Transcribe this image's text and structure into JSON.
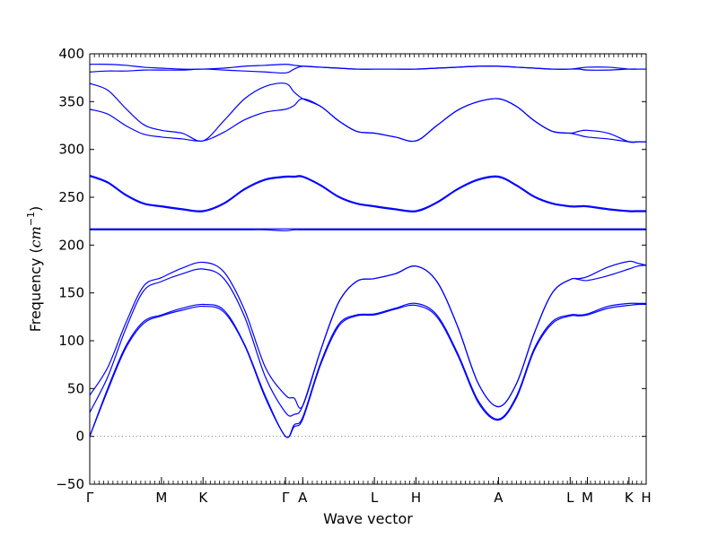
{
  "chart_data": {
    "type": "line",
    "title": "",
    "xlabel": "Wave vector",
    "ylabel": "Frequency ($cm^{-1}$)",
    "ylabel_plain": "Frequency (",
    "ylabel_unit": "cm",
    "ylabel_exp": "−1",
    "ylabel_close": ")",
    "ylim": [
      -50,
      400
    ],
    "yticks": [
      -50,
      0,
      50,
      100,
      150,
      200,
      250,
      300,
      350,
      400
    ],
    "grid": false,
    "legend": "none",
    "line_color": "#0000ff",
    "zero_line": {
      "y": 0,
      "style": "dotted",
      "color": "#808080"
    },
    "xticks": [
      {
        "label": "Γ",
        "x": 0
      },
      {
        "label": "M",
        "x": 1.0
      },
      {
        "label": "K",
        "x": 1.58
      },
      {
        "label": "Γ",
        "x": 2.73
      },
      {
        "label": "A",
        "x": 2.97
      },
      {
        "label": "L",
        "x": 3.97
      },
      {
        "label": "H",
        "x": 4.55
      },
      {
        "label": "A",
        "x": 5.7
      },
      {
        "label": "L",
        "x": 6.7
      },
      {
        "label": "M",
        "x": 6.94
      },
      {
        "label": "K",
        "x": 7.52
      },
      {
        "label": "H",
        "x": 7.76
      }
    ],
    "x": [
      0,
      0.25,
      0.5,
      0.75,
      1.0,
      1.29,
      1.58,
      1.87,
      2.16,
      2.45,
      2.73,
      2.85,
      2.97,
      3.22,
      3.47,
      3.72,
      3.97,
      4.26,
      4.55,
      4.84,
      5.13,
      5.42,
      5.7,
      5.95,
      6.2,
      6.45,
      6.7,
      6.82,
      6.94,
      7.23,
      7.52,
      7.64,
      7.76
    ],
    "series": [
      {
        "values": [
          0,
          48,
          92,
          118,
          126,
          132,
          136,
          130,
          95,
          40,
          0,
          10,
          18,
          75,
          115,
          126,
          127,
          133,
          137,
          125,
          85,
          35,
          17,
          40,
          90,
          118,
          126,
          126,
          127,
          134,
          137,
          138,
          138
        ]
      },
      {
        "values": [
          0,
          50,
          94,
          120,
          127,
          134,
          138,
          132,
          96,
          42,
          0,
          12,
          20,
          77,
          117,
          127,
          128,
          134,
          139,
          127,
          87,
          37,
          18,
          42,
          92,
          120,
          127,
          127,
          128,
          136,
          139,
          139,
          139
        ]
      },
      {
        "values": [
          25,
          62,
          112,
          152,
          162,
          170,
          175,
          165,
          125,
          62,
          25,
          23,
          32,
          90,
          140,
          162,
          165,
          170,
          178,
          162,
          115,
          55,
          31,
          55,
          108,
          150,
          164,
          164,
          163,
          168,
          175,
          178,
          179
        ]
      },
      {
        "values": [
          43,
          72,
          118,
          157,
          166,
          176,
          182,
          172,
          132,
          72,
          43,
          40,
          32,
          90,
          140,
          162,
          165,
          170,
          178,
          162,
          115,
          55,
          31,
          55,
          108,
          150,
          164,
          165,
          167,
          177,
          183,
          181,
          179
        ]
      },
      {
        "values": [
          216,
          216,
          216,
          216,
          216,
          216,
          216,
          216,
          216,
          216,
          215,
          216,
          216,
          216,
          216,
          216,
          216,
          216,
          216,
          216,
          216,
          216,
          216,
          216,
          216,
          216,
          216,
          216,
          216,
          216,
          216,
          216,
          216
        ]
      },
      {
        "values": [
          217,
          217,
          217,
          217,
          217,
          217,
          217,
          217,
          217,
          217,
          217,
          217,
          217,
          217,
          217,
          217,
          217,
          217,
          217,
          217,
          217,
          217,
          217,
          217,
          217,
          217,
          217,
          217,
          217,
          217,
          217,
          217,
          217
        ]
      },
      {
        "values": [
          272,
          265,
          252,
          243,
          240,
          237,
          235,
          243,
          258,
          268,
          271,
          271,
          271,
          262,
          250,
          243,
          240,
          237,
          235,
          244,
          258,
          268,
          271,
          262,
          250,
          243,
          240,
          240,
          240,
          237,
          235,
          235,
          235
        ]
      },
      {
        "values": [
          273,
          266,
          253,
          244,
          241,
          238,
          236,
          244,
          259,
          269,
          272,
          272,
          272,
          263,
          251,
          244,
          241,
          238,
          236,
          245,
          259,
          269,
          272,
          263,
          251,
          244,
          241,
          241,
          241,
          238,
          236,
          236,
          236
        ]
      },
      {
        "values": [
          342,
          337,
          325,
          316,
          313,
          311,
          309,
          318,
          331,
          339,
          342,
          346,
          353,
          345,
          330,
          319,
          317,
          313,
          309,
          325,
          341,
          350,
          353,
          345,
          330,
          319,
          317,
          315,
          313,
          311,
          308,
          308,
          308
        ]
      },
      {
        "values": [
          369,
          362,
          343,
          326,
          320,
          317,
          309,
          330,
          353,
          366,
          369,
          360,
          353,
          345,
          330,
          319,
          317,
          313,
          309,
          325,
          341,
          350,
          353,
          345,
          330,
          319,
          317,
          319,
          320,
          317,
          308,
          308,
          308
        ]
      },
      {
        "values": [
          381,
          382,
          382,
          383,
          383,
          383,
          384,
          383,
          382,
          381,
          380,
          384,
          387,
          386,
          385,
          384,
          384,
          384,
          384,
          385,
          386,
          387,
          387,
          386,
          385,
          384,
          384,
          384,
          383,
          383,
          384,
          384,
          384
        ]
      },
      {
        "values": [
          389,
          389,
          388,
          386,
          385,
          384,
          384,
          385,
          387,
          388,
          389,
          388,
          387,
          386,
          385,
          384,
          384,
          384,
          384,
          385,
          386,
          387,
          387,
          386,
          385,
          384,
          384,
          385,
          386,
          386,
          384,
          384,
          384
        ]
      }
    ]
  }
}
